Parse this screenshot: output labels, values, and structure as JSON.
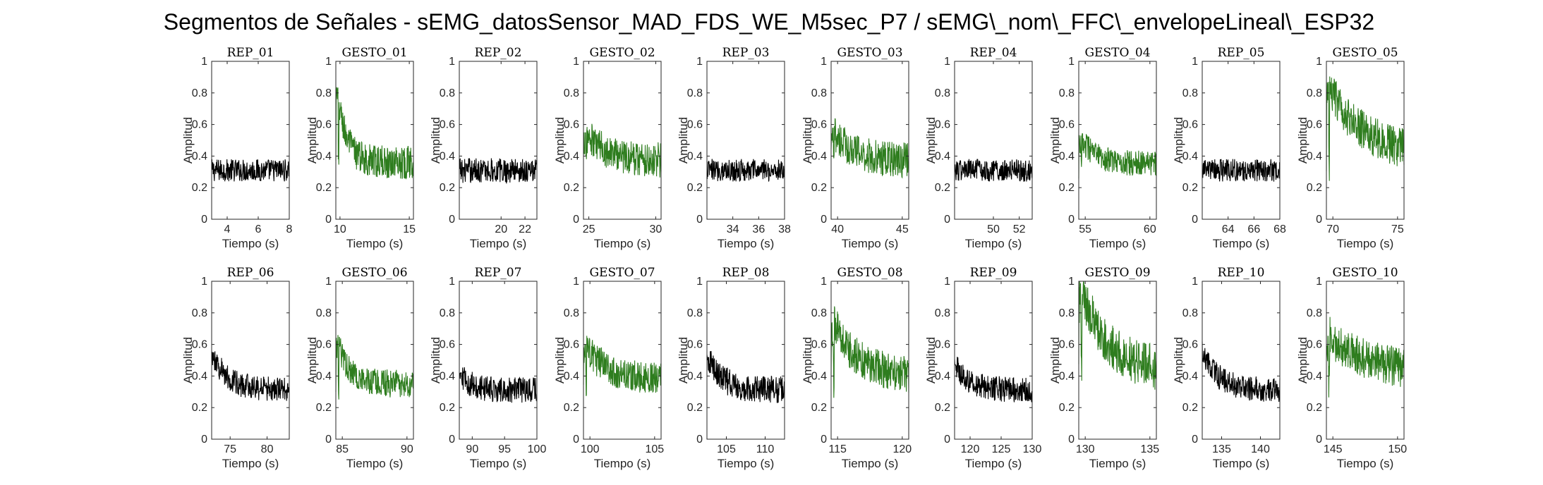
{
  "figure": {
    "title": "Segmentos de Señales - sEMG_datosSensor_MAD_FDS_WE_M5sec_P7 / sEMG\\_nom\\_FFC\\_envelopeLineal\\_ESP32",
    "xlabel": "Tiempo (s)",
    "ylabel": "Amplitud",
    "colors": {
      "rep": "#000000",
      "gesto": "#2e7d1e",
      "axes": "#262626"
    }
  },
  "chart_data": [
    {
      "type": "line",
      "title": "REP_01",
      "kind": "rep",
      "xlim": [
        3,
        8
      ],
      "xticks": [
        4,
        6,
        8
      ],
      "ylim": [
        0,
        1
      ],
      "yticks": [
        0,
        0.2,
        0.4,
        0.6,
        0.8,
        1
      ],
      "profile": {
        "base": 0.31,
        "noise": 0.09,
        "peak": 0.31,
        "decay": 0
      }
    },
    {
      "type": "line",
      "title": "GESTO_01",
      "kind": "gesto",
      "xlim": [
        9.7,
        15.3
      ],
      "xticks": [
        10,
        15
      ],
      "ylim": [
        0,
        1
      ],
      "yticks": [
        0,
        0.2,
        0.4,
        0.6,
        0.8,
        1
      ],
      "profile": {
        "base": 0.36,
        "noise": 0.13,
        "peak": 0.88,
        "decay": 0.12
      }
    },
    {
      "type": "line",
      "title": "REP_02",
      "kind": "rep",
      "xlim": [
        16.5,
        23
      ],
      "xticks": [
        20,
        22
      ],
      "ylim": [
        0,
        1
      ],
      "yticks": [
        0,
        0.2,
        0.4,
        0.6,
        0.8,
        1
      ],
      "profile": {
        "base": 0.31,
        "noise": 0.1,
        "peak": 0.31,
        "decay": 0
      }
    },
    {
      "type": "line",
      "title": "GESTO_02",
      "kind": "gesto",
      "xlim": [
        24.6,
        30.4
      ],
      "xticks": [
        25,
        30
      ],
      "ylim": [
        0,
        1
      ],
      "yticks": [
        0,
        0.2,
        0.4,
        0.6,
        0.8,
        1
      ],
      "profile": {
        "base": 0.37,
        "noise": 0.14,
        "peak": 0.55,
        "decay": 0.3
      }
    },
    {
      "type": "line",
      "title": "REP_03",
      "kind": "rep",
      "xlim": [
        32,
        38
      ],
      "xticks": [
        34,
        36,
        38
      ],
      "ylim": [
        0,
        1
      ],
      "yticks": [
        0,
        0.2,
        0.4,
        0.6,
        0.8,
        1
      ],
      "profile": {
        "base": 0.31,
        "noise": 0.09,
        "peak": 0.31,
        "decay": 0
      }
    },
    {
      "type": "line",
      "title": "GESTO_03",
      "kind": "gesto",
      "xlim": [
        39.5,
        45.5
      ],
      "xticks": [
        40,
        45
      ],
      "ylim": [
        0,
        1
      ],
      "yticks": [
        0,
        0.2,
        0.4,
        0.6,
        0.8,
        1
      ],
      "profile": {
        "base": 0.37,
        "noise": 0.14,
        "peak": 0.58,
        "decay": 0.25
      }
    },
    {
      "type": "line",
      "title": "REP_04",
      "kind": "rep",
      "xlim": [
        47,
        53
      ],
      "xticks": [
        50,
        52
      ],
      "ylim": [
        0,
        1
      ],
      "yticks": [
        0,
        0.2,
        0.4,
        0.6,
        0.8,
        1
      ],
      "profile": {
        "base": 0.31,
        "noise": 0.09,
        "peak": 0.31,
        "decay": 0
      }
    },
    {
      "type": "line",
      "title": "GESTO_04",
      "kind": "gesto",
      "xlim": [
        54.5,
        60.5
      ],
      "xticks": [
        55,
        60
      ],
      "ylim": [
        0,
        1
      ],
      "yticks": [
        0,
        0.2,
        0.4,
        0.6,
        0.8,
        1
      ],
      "profile": {
        "base": 0.35,
        "noise": 0.1,
        "peak": 0.53,
        "decay": 0.2
      }
    },
    {
      "type": "line",
      "title": "REP_05",
      "kind": "rep",
      "xlim": [
        62,
        68
      ],
      "xticks": [
        64,
        66,
        68
      ],
      "ylim": [
        0,
        1
      ],
      "yticks": [
        0,
        0.2,
        0.4,
        0.6,
        0.8,
        1
      ],
      "profile": {
        "base": 0.31,
        "noise": 0.09,
        "peak": 0.31,
        "decay": 0
      }
    },
    {
      "type": "line",
      "title": "GESTO_05",
      "kind": "gesto",
      "xlim": [
        69.5,
        75.5
      ],
      "xticks": [
        70,
        75
      ],
      "ylim": [
        0,
        1
      ],
      "yticks": [
        0,
        0.2,
        0.4,
        0.6,
        0.8,
        1
      ],
      "profile": {
        "base": 0.4,
        "noise": 0.16,
        "peak": 0.87,
        "decay": 0.45
      }
    },
    {
      "type": "line",
      "title": "REP_06",
      "kind": "rep",
      "xlim": [
        72.5,
        83
      ],
      "xticks": [
        75,
        80
      ],
      "ylim": [
        0,
        1
      ],
      "yticks": [
        0,
        0.2,
        0.4,
        0.6,
        0.8,
        1
      ],
      "profile": {
        "base": 0.31,
        "noise": 0.1,
        "peak": 0.55,
        "decay": 0.2
      }
    },
    {
      "type": "line",
      "title": "GESTO_06",
      "kind": "gesto",
      "xlim": [
        84.5,
        90.5
      ],
      "xticks": [
        85,
        90
      ],
      "ylim": [
        0,
        1
      ],
      "yticks": [
        0,
        0.2,
        0.4,
        0.6,
        0.8,
        1
      ],
      "profile": {
        "base": 0.35,
        "noise": 0.11,
        "peak": 0.66,
        "decay": 0.15
      }
    },
    {
      "type": "line",
      "title": "REP_07",
      "kind": "rep",
      "xlim": [
        88,
        100
      ],
      "xticks": [
        90,
        95,
        100
      ],
      "ylim": [
        0,
        1
      ],
      "yticks": [
        0,
        0.2,
        0.4,
        0.6,
        0.8,
        1
      ],
      "profile": {
        "base": 0.31,
        "noise": 0.1,
        "peak": 0.42,
        "decay": 0.15
      }
    },
    {
      "type": "line",
      "title": "GESTO_07",
      "kind": "gesto",
      "xlim": [
        99.5,
        105.5
      ],
      "xticks": [
        100,
        105
      ],
      "ylim": [
        0,
        1
      ],
      "yticks": [
        0,
        0.2,
        0.4,
        0.6,
        0.8,
        1
      ],
      "profile": {
        "base": 0.37,
        "noise": 0.13,
        "peak": 0.6,
        "decay": 0.3
      }
    },
    {
      "type": "line",
      "title": "REP_08",
      "kind": "rep",
      "xlim": [
        102.5,
        112.5
      ],
      "xticks": [
        105,
        110
      ],
      "ylim": [
        0,
        1
      ],
      "yticks": [
        0,
        0.2,
        0.4,
        0.6,
        0.8,
        1
      ],
      "profile": {
        "base": 0.31,
        "noise": 0.11,
        "peak": 0.52,
        "decay": 0.2
      }
    },
    {
      "type": "line",
      "title": "GESTO_08",
      "kind": "gesto",
      "xlim": [
        114.5,
        120.5
      ],
      "xticks": [
        115,
        120
      ],
      "ylim": [
        0,
        1
      ],
      "yticks": [
        0,
        0.2,
        0.4,
        0.6,
        0.8,
        1
      ],
      "profile": {
        "base": 0.4,
        "noise": 0.15,
        "peak": 0.78,
        "decay": 0.3
      }
    },
    {
      "type": "line",
      "title": "REP_09",
      "kind": "rep",
      "xlim": [
        117.5,
        130
      ],
      "xticks": [
        120,
        125,
        130
      ],
      "ylim": [
        0,
        1
      ],
      "yticks": [
        0,
        0.2,
        0.4,
        0.6,
        0.8,
        1
      ],
      "profile": {
        "base": 0.31,
        "noise": 0.1,
        "peak": 0.47,
        "decay": 0.2
      }
    },
    {
      "type": "line",
      "title": "GESTO_09",
      "kind": "gesto",
      "xlim": [
        129.5,
        135.5
      ],
      "xticks": [
        130,
        135
      ],
      "ylim": [
        0,
        1
      ],
      "yticks": [
        0,
        0.2,
        0.4,
        0.6,
        0.8,
        1
      ],
      "profile": {
        "base": 0.42,
        "noise": 0.18,
        "peak": 1.0,
        "decay": 0.35
      }
    },
    {
      "type": "line",
      "title": "REP_10",
      "kind": "rep",
      "xlim": [
        132.5,
        142.5
      ],
      "xticks": [
        135,
        140
      ],
      "ylim": [
        0,
        1
      ],
      "yticks": [
        0,
        0.2,
        0.4,
        0.6,
        0.8,
        1
      ],
      "profile": {
        "base": 0.31,
        "noise": 0.1,
        "peak": 0.56,
        "decay": 0.2
      }
    },
    {
      "type": "line",
      "title": "GESTO_10",
      "kind": "gesto",
      "xlim": [
        144.5,
        150.5
      ],
      "xticks": [
        145,
        150
      ],
      "ylim": [
        0,
        1
      ],
      "yticks": [
        0,
        0.2,
        0.4,
        0.6,
        0.8,
        1
      ],
      "profile": {
        "base": 0.42,
        "noise": 0.16,
        "peak": 0.67,
        "decay": 0.5
      }
    }
  ]
}
